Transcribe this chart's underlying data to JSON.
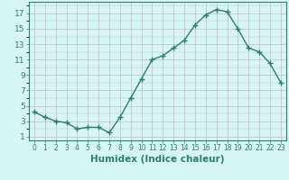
{
  "x": [
    0,
    1,
    2,
    3,
    4,
    5,
    6,
    7,
    8,
    9,
    10,
    11,
    12,
    13,
    14,
    15,
    16,
    17,
    18,
    19,
    20,
    21,
    22,
    23
  ],
  "y": [
    4.2,
    3.5,
    3.0,
    2.8,
    2.0,
    2.2,
    2.2,
    1.5,
    3.5,
    6.0,
    8.5,
    11.0,
    11.5,
    12.5,
    13.5,
    15.5,
    16.8,
    17.5,
    17.2,
    15.0,
    12.5,
    12.0,
    10.5,
    8.0
  ],
  "line_color": "#2e7d6e",
  "marker": "+",
  "marker_size": 4,
  "bg_color": "#d6f5f5",
  "grid_color_major": "#c8b8b8",
  "grid_color_minor": "#ddd0d0",
  "xlabel": "Humidex (Indice chaleur)",
  "xlabel_fontsize": 7.5,
  "ylabel_ticks": [
    1,
    3,
    5,
    7,
    9,
    11,
    13,
    15,
    17
  ],
  "xlim": [
    -0.5,
    23.5
  ],
  "ylim": [
    0.5,
    18.5
  ],
  "line_width": 1.0
}
